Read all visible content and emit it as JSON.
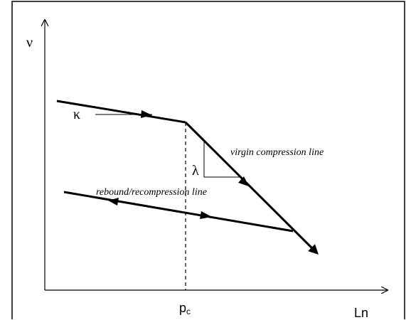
{
  "diagram": {
    "y_axis_label": "ν",
    "x_axis_label": "Ln",
    "critical_pressure": {
      "base": "p",
      "subscript": "c"
    },
    "kappa_symbol": "κ",
    "lambda_symbol": "λ",
    "virgin_line_label": "virgin compression line",
    "rebound_line_label": "rebound/recompression line"
  }
}
